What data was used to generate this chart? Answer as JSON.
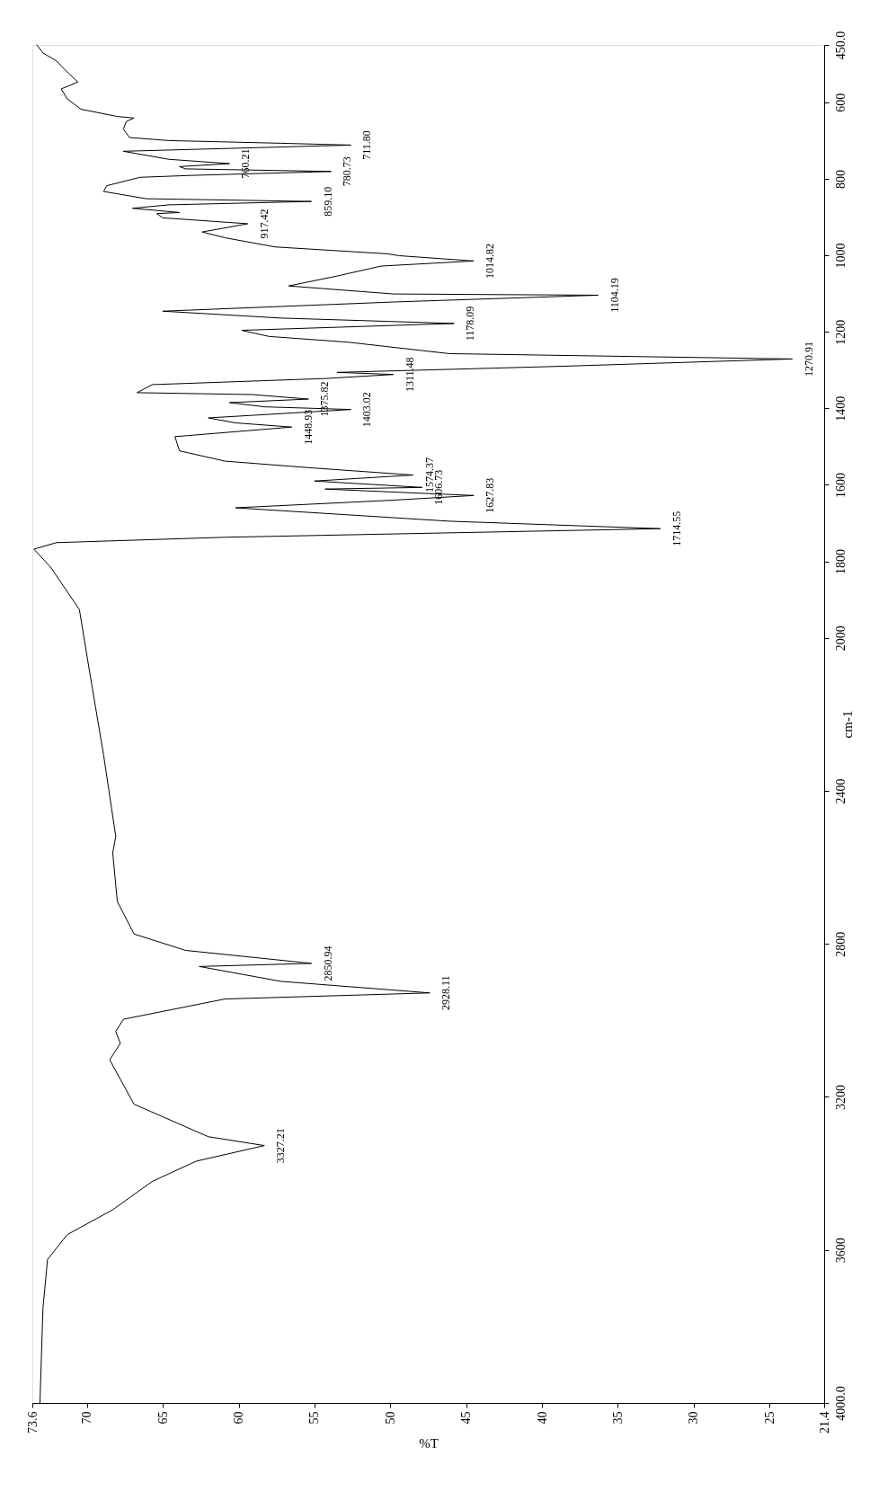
{
  "chart_data": {
    "type": "line",
    "xlabel": "%T",
    "ylabel": "cm-1",
    "x": [
      73.3,
      72.9,
      72.0,
      71.5,
      70.6,
      71.7,
      71.3,
      70.4,
      68.0,
      66.9,
      67.4,
      67.6,
      67.2,
      64.6,
      57.2,
      52.6,
      67.6,
      64.6,
      60.6,
      63.9,
      63.5,
      53.9,
      63.1,
      66.5,
      68.7,
      68.9,
      66.1,
      55.2,
      64.6,
      67.0,
      63.9,
      65.4,
      65.0,
      59.4,
      62.4,
      60.9,
      57.6,
      50.2,
      49.4,
      44.5,
      50.6,
      53.5,
      56.7,
      49.8,
      36.3,
      49.8,
      65.0,
      57.2,
      45.8,
      59.8,
      58.0,
      52.8,
      46.1,
      23.5,
      38.7,
      53.5,
      49.8,
      54.3,
      65.7,
      66.7,
      59.1,
      55.4,
      60.6,
      58.3,
      52.6,
      62.0,
      60.2,
      56.5,
      64.2,
      63.9,
      60.9,
      55.4,
      48.5,
      55.0,
      47.9,
      54.3,
      44.5,
      49.8,
      60.2,
      46.1,
      32.2,
      60.9,
      72.0,
      73.5,
      72.4,
      70.5,
      69.8,
      68.9,
      68.1,
      68.3,
      68.0,
      66.9,
      63.5,
      55.2,
      62.6,
      57.2,
      47.4,
      60.9,
      67.6,
      68.1,
      67.8,
      68.5,
      66.9,
      62.0,
      58.3,
      62.8,
      65.7,
      68.3,
      71.3,
      72.6,
      72.9,
      73.1
    ],
    "series": [
      {
        "color": "#000000",
        "values": [
          450,
          471,
          492,
          513,
          547,
          565,
          591,
          618,
          637,
          641,
          650,
          670,
          692,
          700,
          707,
          711.8,
          728,
          749,
          760.21,
          768,
          774,
          780.73,
          791,
          796,
          818,
          833,
          852,
          859.1,
          868,
          877,
          888,
          891,
          902,
          917.42,
          939,
          954,
          978,
          996,
          1001,
          1014.82,
          1028,
          1054,
          1080,
          1101,
          1104.19,
          1122,
          1146,
          1164,
          1178.09,
          1196,
          1212,
          1227,
          1257,
          1270.91,
          1290,
          1306,
          1311.48,
          1322,
          1338,
          1359,
          1364,
          1375.82,
          1385,
          1396,
          1403.02,
          1425,
          1438,
          1448.93,
          1474,
          1511,
          1538,
          1555,
          1574.37,
          1590,
          1606.73,
          1611,
          1627.83,
          1640,
          1660,
          1695,
          1714.55,
          1737,
          1751,
          1768,
          1815,
          1926,
          2095,
          2307,
          2519,
          2562,
          2689,
          2774,
          2817,
          2850.94,
          2859,
          2898,
          2928.11,
          2944,
          2997,
          3029,
          3060,
          3103,
          3219,
          3304,
          3327.21,
          3368,
          3421,
          3495,
          3560,
          3625,
          3752,
          4000
        ]
      }
    ],
    "ylim": [
      4000,
      450
    ],
    "yticks": [
      {
        "value": 4000,
        "label": "4000.0"
      },
      3600,
      3200,
      2800,
      2400,
      2000,
      1800,
      1600,
      1400,
      1200,
      1000,
      800,
      600,
      {
        "value": 450,
        "label": "450.0"
      }
    ],
    "xlim": [
      73.6,
      21.4
    ],
    "xticks": [
      73.6,
      70,
      65,
      60,
      55,
      50,
      45,
      40,
      35,
      30,
      25,
      21.4
    ],
    "grid": false,
    "marker": "none",
    "line_style": "solid",
    "annotations": [
      {
        "text": "711.80",
        "y": 711.8,
        "x": 52.6
      },
      {
        "text": "760.21",
        "y": 760.21,
        "x": 60.6
      },
      {
        "text": "780.73",
        "y": 780.73,
        "x": 53.9
      },
      {
        "text": "859.10",
        "y": 859.1,
        "x": 55.2
      },
      {
        "text": "917.42",
        "y": 917.42,
        "x": 59.4
      },
      {
        "text": "1014.82",
        "y": 1014.82,
        "x": 44.5
      },
      {
        "text": "1104.19",
        "y": 1104.19,
        "x": 36.3
      },
      {
        "text": "1178.09",
        "y": 1178.09,
        "x": 45.8
      },
      {
        "text": "1270.91",
        "y": 1270.91,
        "x": 23.5
      },
      {
        "text": "1311.48",
        "y": 1311.48,
        "x": 49.8
      },
      {
        "text": "1375.82",
        "y": 1375.82,
        "x": 55.4
      },
      {
        "text": "1403.02",
        "y": 1403.02,
        "x": 52.6
      },
      {
        "text": "1448.93",
        "y": 1448.93,
        "x": 56.5
      },
      {
        "text": "1574.37",
        "y": 1574.37,
        "x": 48.5
      },
      {
        "text": "1606.73",
        "y": 1606.73,
        "x": 47.9
      },
      {
        "text": "1627.83",
        "y": 1627.83,
        "x": 44.5
      },
      {
        "text": "1714.55",
        "y": 1714.55,
        "x": 32.2
      },
      {
        "text": "2850.94",
        "y": 2850.94,
        "x": 55.2
      },
      {
        "text": "2928.11",
        "y": 2928.11,
        "x": 47.4
      },
      {
        "text": "3327.21",
        "y": 3327.21,
        "x": 58.3
      }
    ]
  }
}
